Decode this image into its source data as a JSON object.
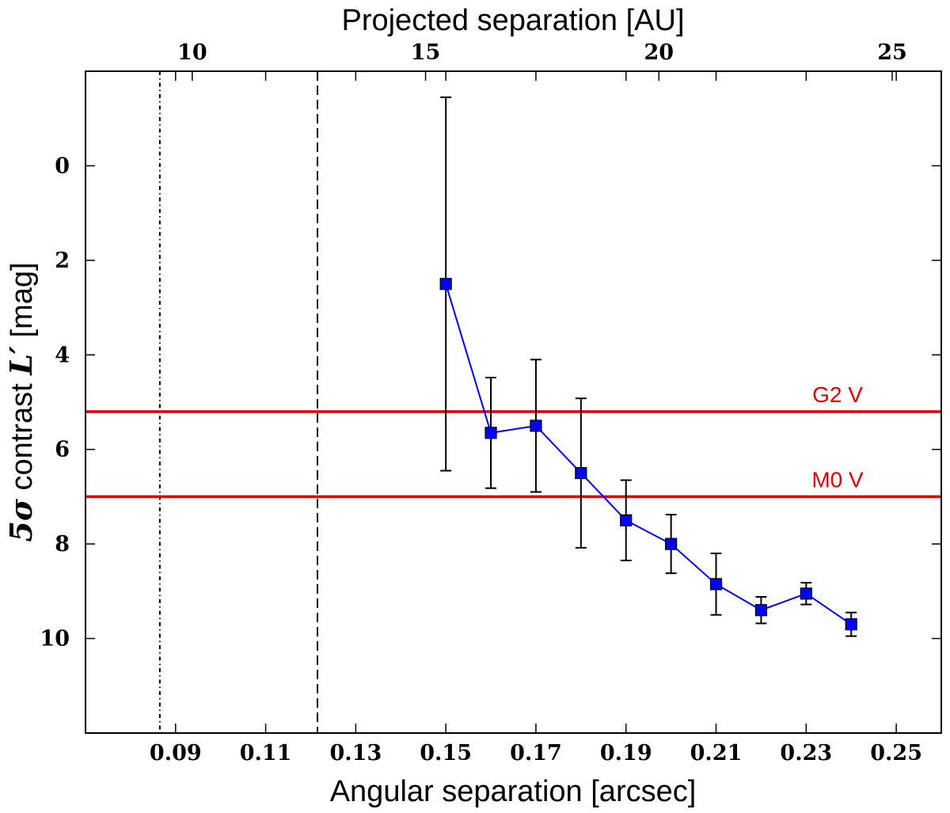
{
  "chart_data": {
    "type": "line",
    "title": "",
    "xlabel": "Angular separation [arcsec]",
    "x2label": "Projected separation [AU]",
    "ylabel": {
      "prefix": "5σ",
      "middle": " contrast ",
      "symbol": "L′",
      "suffix": " [mag]"
    },
    "xlim": [
      0.07,
      0.26
    ],
    "ylim": [
      12,
      -2
    ],
    "y_inverted": true,
    "x_ticks": [
      0.09,
      0.11,
      0.13,
      0.15,
      0.17,
      0.19,
      0.21,
      0.23,
      0.25
    ],
    "x_tick_labels": [
      "0.09",
      "0.11",
      "0.13",
      "0.15",
      "0.17",
      "0.19",
      "0.21",
      "0.23",
      "0.25"
    ],
    "y_ticks": [
      0,
      2,
      4,
      6,
      8,
      10
    ],
    "y_tick_labels": [
      "0",
      "2",
      "4",
      "6",
      "8",
      "10"
    ],
    "x2_ticks_arcsec": [
      0.0937,
      0.1455,
      0.1973,
      0.2491
    ],
    "x2_tick_labels": [
      "10",
      "15",
      "20",
      "25"
    ],
    "series": [
      {
        "name": "5σ contrast",
        "color": "#0000ff",
        "x": [
          0.15,
          0.16,
          0.17,
          0.18,
          0.19,
          0.2,
          0.21,
          0.22,
          0.23,
          0.24
        ],
        "y": [
          2.5,
          5.65,
          5.5,
          6.5,
          7.5,
          8.0,
          8.85,
          9.4,
          9.05,
          9.7
        ],
        "err": [
          3.95,
          1.17,
          1.4,
          1.58,
          0.85,
          0.62,
          0.65,
          0.28,
          0.23,
          0.25
        ]
      }
    ],
    "hlines": [
      {
        "label": "G2 V",
        "y": 5.2,
        "color": "#e00000"
      },
      {
        "label": "M0 V",
        "y": 7.0,
        "color": "#e00000"
      }
    ],
    "vlines": [
      {
        "x": 0.0865,
        "style": "dashdot",
        "color": "#000000"
      },
      {
        "x": 0.1215,
        "style": "dashed",
        "color": "#000000"
      }
    ]
  }
}
